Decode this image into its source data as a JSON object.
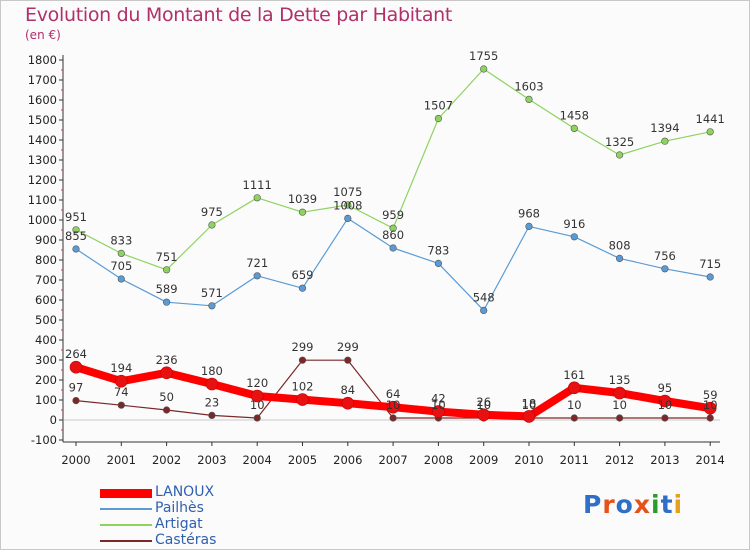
{
  "title": "Evolution du Montant de la Dette par Habitant",
  "unit": "(en €)",
  "logo": {
    "text": "Proxiti",
    "colors": [
      "#2f6fc7",
      "#e8501a",
      "#2f6fc7",
      "#e8501a",
      "#2a9d2a",
      "#2f6fc7",
      "#e8a01a"
    ]
  },
  "chart_data": {
    "type": "line",
    "title": "Evolution du Montant de la Dette par Habitant",
    "ylabel": "(en €)",
    "xlabel": "",
    "ylim": [
      -100,
      1800
    ],
    "yticks": [
      -100,
      0,
      100,
      200,
      300,
      400,
      500,
      600,
      700,
      800,
      900,
      1000,
      1100,
      1200,
      1300,
      1400,
      1500,
      1600,
      1700,
      1800
    ],
    "grid": false,
    "legend": "bottom-left",
    "x": [
      "2000",
      "2001",
      "2002",
      "2003",
      "2004",
      "2005",
      "2006",
      "2007",
      "2008",
      "2009",
      "2010",
      "2011",
      "2012",
      "2013",
      "2014"
    ],
    "series": [
      {
        "name": "LANOUX",
        "color": "#ff0000",
        "width": 8,
        "values": [
          264,
          194,
          236,
          180,
          120,
          102,
          84,
          64,
          42,
          26,
          18,
          161,
          135,
          95,
          59
        ]
      },
      {
        "name": "Pailhès",
        "color": "#5b9bd5",
        "width": 1.2,
        "values": [
          855,
          705,
          589,
          571,
          721,
          659,
          1008,
          860,
          783,
          548,
          968,
          916,
          808,
          756,
          715
        ]
      },
      {
        "name": "Artigat",
        "color": "#8dd35f",
        "width": 1.2,
        "values": [
          951,
          833,
          751,
          975,
          1111,
          1039,
          1075,
          959,
          1507,
          1755,
          1603,
          1458,
          1325,
          1394,
          1441
        ]
      },
      {
        "name": "Castéras",
        "color": "#7b2828",
        "width": 1.2,
        "values": [
          97,
          74,
          50,
          23,
          10,
          299,
          299,
          10,
          10,
          10,
          10,
          10,
          10,
          10,
          10
        ]
      }
    ]
  }
}
